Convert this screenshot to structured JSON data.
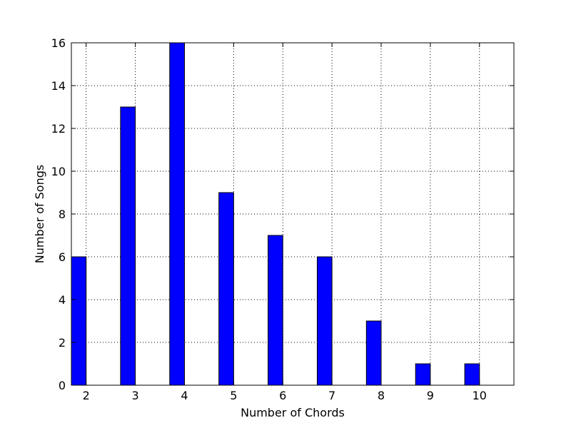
{
  "chart_data": {
    "type": "bar",
    "categories": [
      "2",
      "3",
      "4",
      "5",
      "6",
      "7",
      "8",
      "9",
      "10"
    ],
    "x": [
      2,
      3,
      4,
      5,
      6,
      7,
      8,
      9,
      10
    ],
    "values": [
      6,
      13,
      16,
      9,
      7,
      6,
      3,
      1,
      1
    ],
    "title": "",
    "xlabel": "Number of Chords",
    "ylabel": "Number of Songs",
    "xlim": [
      1.7,
      10.7
    ],
    "ylim": [
      0,
      16
    ],
    "yticks": [
      0,
      2,
      4,
      6,
      8,
      10,
      12,
      14,
      16
    ],
    "bar_width": 0.3,
    "grid": true,
    "bar_color": "#0000ff"
  }
}
